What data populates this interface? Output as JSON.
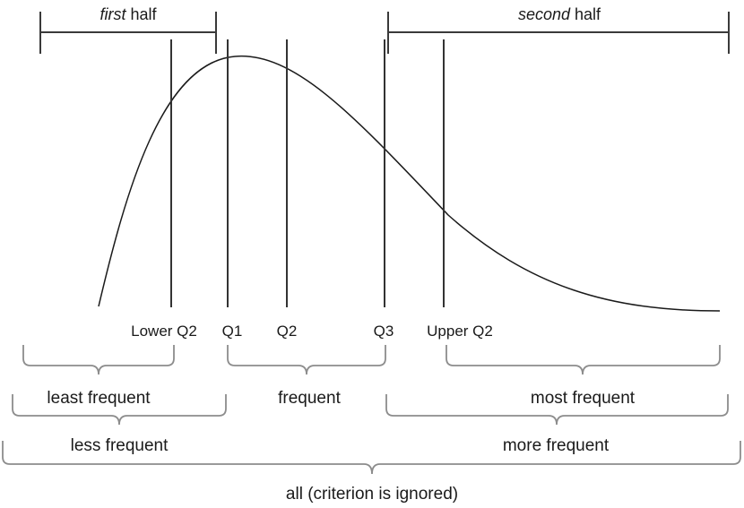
{
  "halves": {
    "first": {
      "emph": "first",
      "rest": " half"
    },
    "second": {
      "emph": "second",
      "rest": " half"
    }
  },
  "markers": {
    "lower_q2": "Lower Q2",
    "q1": "Q1",
    "q2": "Q2",
    "q3": "Q3",
    "upper_q2": "Upper Q2"
  },
  "groups": {
    "least_frequent": "least frequent",
    "frequent": "frequent",
    "most_frequent": "most frequent",
    "less_frequent": "less frequent",
    "more_frequent": "more frequent",
    "all": "all (criterion is ignored)"
  }
}
